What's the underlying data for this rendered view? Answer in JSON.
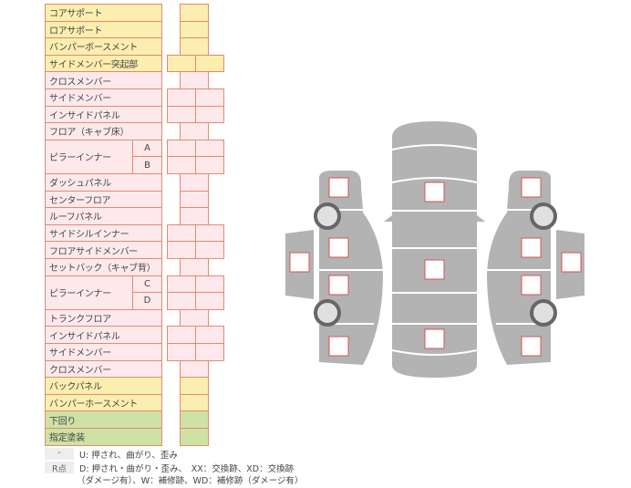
{
  "rows": [
    {
      "label": "コアサポート",
      "color": "y",
      "cells": 1
    },
    {
      "label": "ロアサポート",
      "color": "y",
      "cells": 1
    },
    {
      "label": "バンパーボースメント",
      "color": "y",
      "cells": 1
    },
    {
      "label": "サイドメンバー突起部",
      "color": "y",
      "cells": 2
    },
    {
      "label": "クロスメンバー",
      "color": "p",
      "cells": 1
    },
    {
      "label": "サイドメンバー",
      "color": "p",
      "cells": 2
    },
    {
      "label": "インサイドパネル",
      "color": "p",
      "cells": 2
    },
    {
      "label": "フロア（キャブ床）",
      "color": "p",
      "cells": 1
    },
    {
      "label": "ピラーインナー",
      "color": "p",
      "cells": 2,
      "sub": "A",
      "span": 2
    },
    {
      "label": "",
      "color": "p",
      "cells": 2,
      "sub": "B"
    },
    {
      "label": "ダッシュパネル",
      "color": "p",
      "cells": 1
    },
    {
      "label": "センターフロア",
      "color": "p",
      "cells": 1
    },
    {
      "label": "ルーフパネル",
      "color": "p",
      "cells": 1
    },
    {
      "label": "サイドシルインナー",
      "color": "p",
      "cells": 2
    },
    {
      "label": "フロアサイドメンバー",
      "color": "p",
      "cells": 2
    },
    {
      "label": "セットバック（キャブ背）",
      "color": "p",
      "cells": 1
    },
    {
      "label": "ピラーインナー",
      "color": "p",
      "cells": 2,
      "sub": "C",
      "span": 2
    },
    {
      "label": "",
      "color": "p",
      "cells": 2,
      "sub": "D"
    },
    {
      "label": "トランクフロア",
      "color": "p",
      "cells": 1
    },
    {
      "label": "インサイドパネル",
      "color": "p",
      "cells": 2
    },
    {
      "label": "サイドメンバー",
      "color": "p",
      "cells": 2
    },
    {
      "label": "クロスメンバー",
      "color": "p",
      "cells": 1
    },
    {
      "label": "バックパネル",
      "color": "y",
      "cells": 1
    },
    {
      "label": "バンパーホースメント",
      "color": "y",
      "cells": 1
    },
    {
      "label": "下回り",
      "color": "g",
      "cells": 1
    },
    {
      "label": "指定塗装",
      "color": "g",
      "cells": 1
    }
  ],
  "legend": [
    {
      "key": "-",
      "text": "U: 押され、曲がり、歪み"
    },
    {
      "key": "R点",
      "text": "D: 押され・曲がり・歪み、　XX：交換跡、XD：交換跡"
    },
    {
      "key": "",
      "text": "（ダメージ有）、W：補修跡、WD：補修跡（ダメージ有）"
    }
  ],
  "colors": {
    "yellow": "#fbeeae",
    "pink": "#fde9ec",
    "green": "#cfe2a6",
    "border": "#e38a6e",
    "car": "#b3b3b3",
    "mark": "#d9534f"
  }
}
